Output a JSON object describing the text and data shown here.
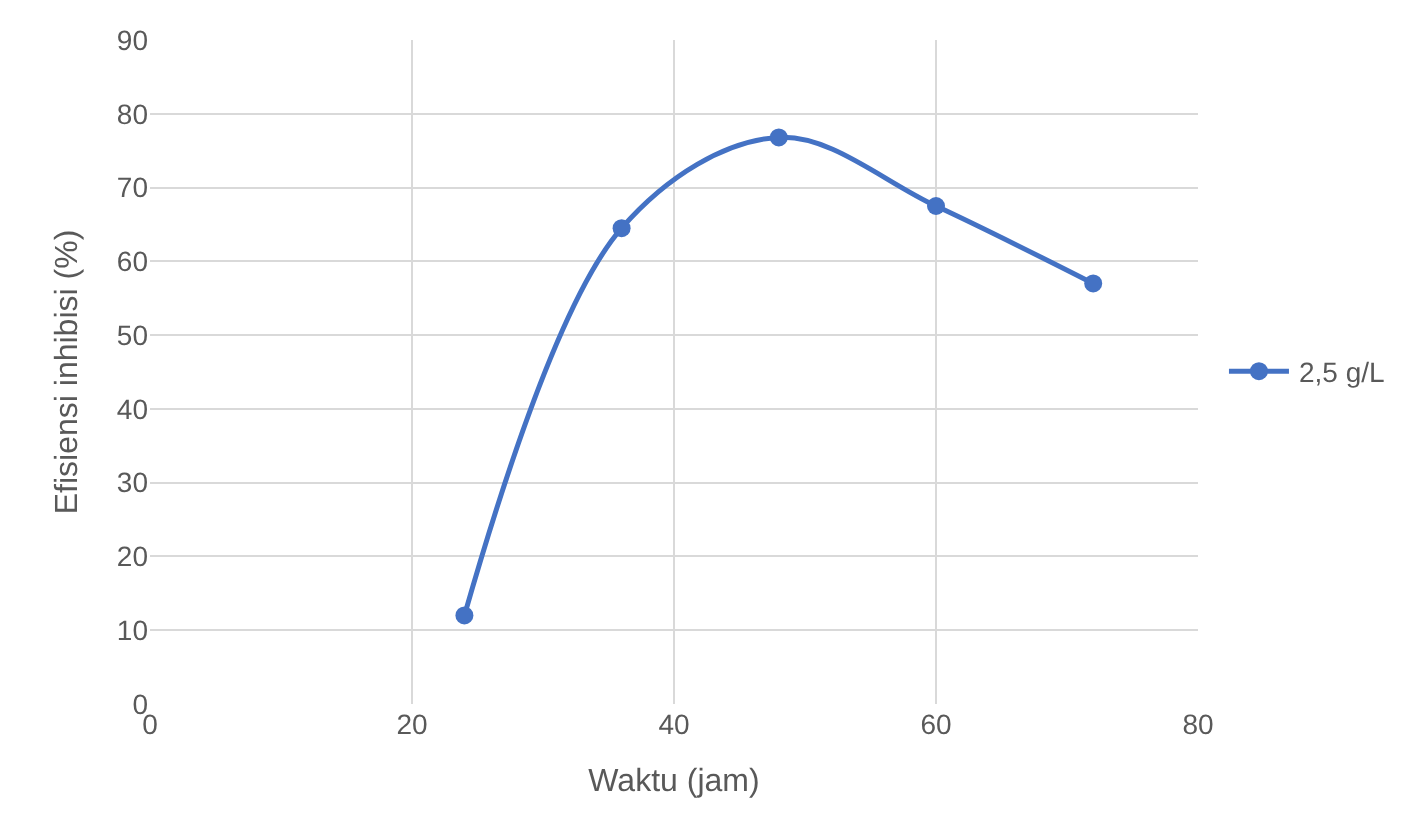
{
  "chart_data": {
    "type": "line",
    "xlabel": "Waktu (jam)",
    "ylabel": "Efisiensi inhibisi (%)",
    "x": [
      24,
      36,
      48,
      60,
      72
    ],
    "series": [
      {
        "name": "2,5 g/L",
        "color": "#4472c4",
        "values": [
          12,
          64.5,
          76.8,
          67.5,
          57
        ]
      }
    ],
    "xlim": [
      0,
      80
    ],
    "xticks": [
      0,
      20,
      40,
      60,
      80
    ],
    "ylim": [
      0,
      90
    ],
    "yticks": [
      0,
      10,
      20,
      30,
      40,
      50,
      60,
      70,
      80,
      90
    ],
    "grid": true,
    "legend": "right",
    "marker": "circle",
    "line_style": "solid"
  }
}
